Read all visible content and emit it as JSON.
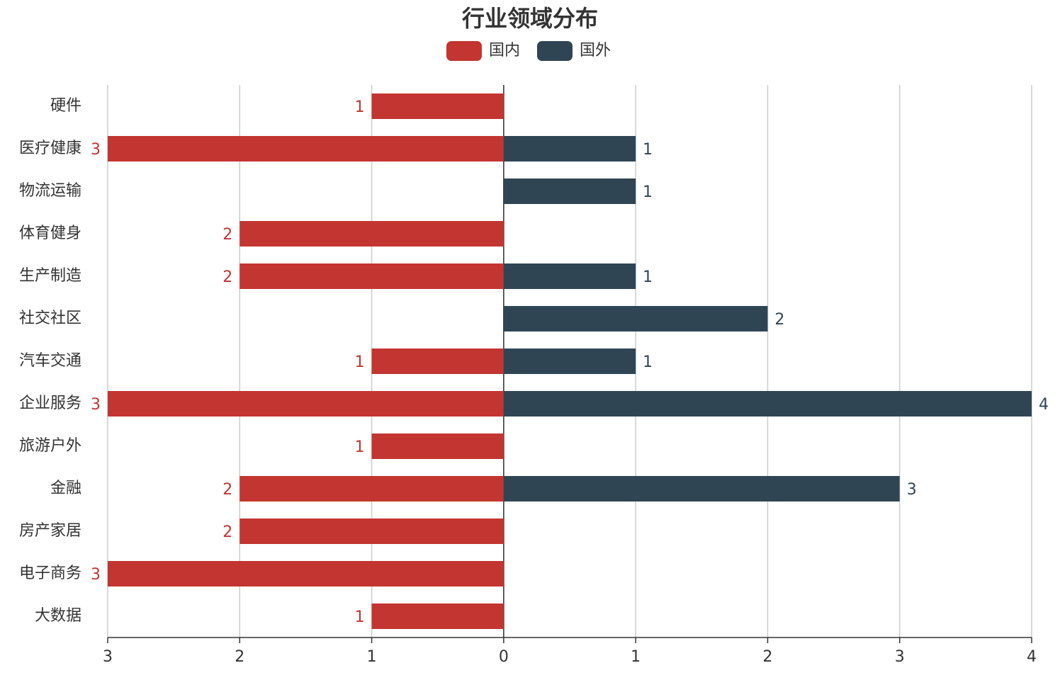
{
  "chart_data": {
    "type": "bar",
    "orientation": "horizontal",
    "title": "行业领域分布",
    "categories": [
      "硬件",
      "医疗健康",
      "物流运输",
      "体育健身",
      "生产制造",
      "社交社区",
      "汽车交通",
      "企业服务",
      "旅游户外",
      "金融",
      "房产家居",
      "电子商务",
      "大数据"
    ],
    "series": [
      {
        "name": "国内",
        "color": "#c23531",
        "values": [
          -1,
          -3,
          null,
          -2,
          -2,
          null,
          -1,
          -3,
          -1,
          -2,
          -2,
          -3,
          -1
        ],
        "value_labels": [
          "1",
          "3",
          null,
          "2",
          "2",
          null,
          "1",
          "3",
          "1",
          "2",
          "2",
          "3",
          "1"
        ]
      },
      {
        "name": "国外",
        "color": "#2f4554",
        "values": [
          null,
          1,
          1,
          null,
          1,
          2,
          1,
          4,
          null,
          3,
          null,
          null,
          null
        ]
      }
    ],
    "xlim": [
      -3,
      4
    ],
    "xticks": [
      {
        "value": -3,
        "label": "3"
      },
      {
        "value": -2,
        "label": "2"
      },
      {
        "value": -1,
        "label": "1"
      },
      0,
      1,
      2,
      3,
      4
    ],
    "grid": true,
    "legend": "top"
  }
}
